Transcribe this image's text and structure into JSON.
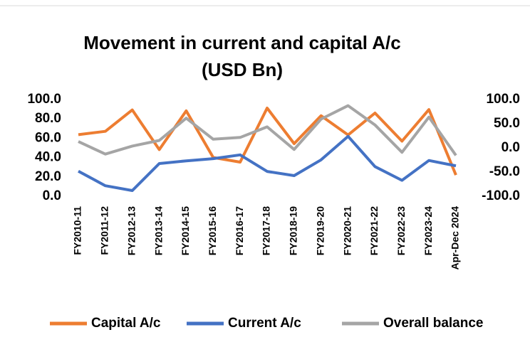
{
  "chart_data": {
    "type": "line",
    "title": [
      "Movement in current and capital A/c",
      "(USD Bn)"
    ],
    "categories": [
      "FY2010-11",
      "FY2011-12",
      "FY2012-13",
      "FY2013-14",
      "FY2014-15",
      "FY2015-16",
      "FY2016-17",
      "FY2017-18",
      "FY2018-19",
      "FY2019-20",
      "FY2020-21",
      "FY2021-22",
      "FY2022-23",
      "FY2023-24",
      "Apr-Dec 2024"
    ],
    "series": [
      {
        "name": "Capital A/c",
        "color": "#ed7d31",
        "axis": "y",
        "values": [
          63.7,
          67.1,
          89.3,
          48.2,
          88.3,
          40.1,
          35.3,
          91.2,
          54.4,
          83.2,
          63.4,
          86.0,
          57.0,
          89.6,
          22.0
        ]
      },
      {
        "name": "Current A/c",
        "color": "#4472c4",
        "axis": "y2",
        "values": [
          -48.1,
          -78.2,
          -88.2,
          -32.4,
          -26.8,
          -22.2,
          -14.4,
          -48.7,
          -57.3,
          -24.7,
          23.9,
          -38.7,
          -67.1,
          -26.0,
          -37.0
        ]
      },
      {
        "name": "Overall balance",
        "color": "#a5a5a5",
        "axis": "y2",
        "values": [
          13.1,
          -12.8,
          3.8,
          15.5,
          61.4,
          17.9,
          21.6,
          43.6,
          -3.3,
          59.5,
          87.3,
          47.5,
          -9.1,
          63.7,
          -15.5
        ]
      }
    ],
    "ylim": [
      0,
      100
    ],
    "yticks": [
      {
        "value": 0,
        "label": "0.0"
      },
      {
        "value": 20,
        "label": "20.0"
      },
      {
        "value": 40,
        "label": "40.0"
      },
      {
        "value": 60,
        "label": "60.0"
      },
      {
        "value": 80,
        "label": "80.0"
      },
      {
        "value": 100,
        "label": "100.0"
      }
    ],
    "y2lim": [
      -100,
      100
    ],
    "y2ticks": [
      {
        "value": -100,
        "label": "-100.0"
      },
      {
        "value": -50,
        "label": "-50.0"
      },
      {
        "value": 0,
        "label": "0.0"
      },
      {
        "value": 50,
        "label": "50.0"
      },
      {
        "value": 100,
        "label": "100.0"
      }
    ],
    "legend": "bottom"
  }
}
